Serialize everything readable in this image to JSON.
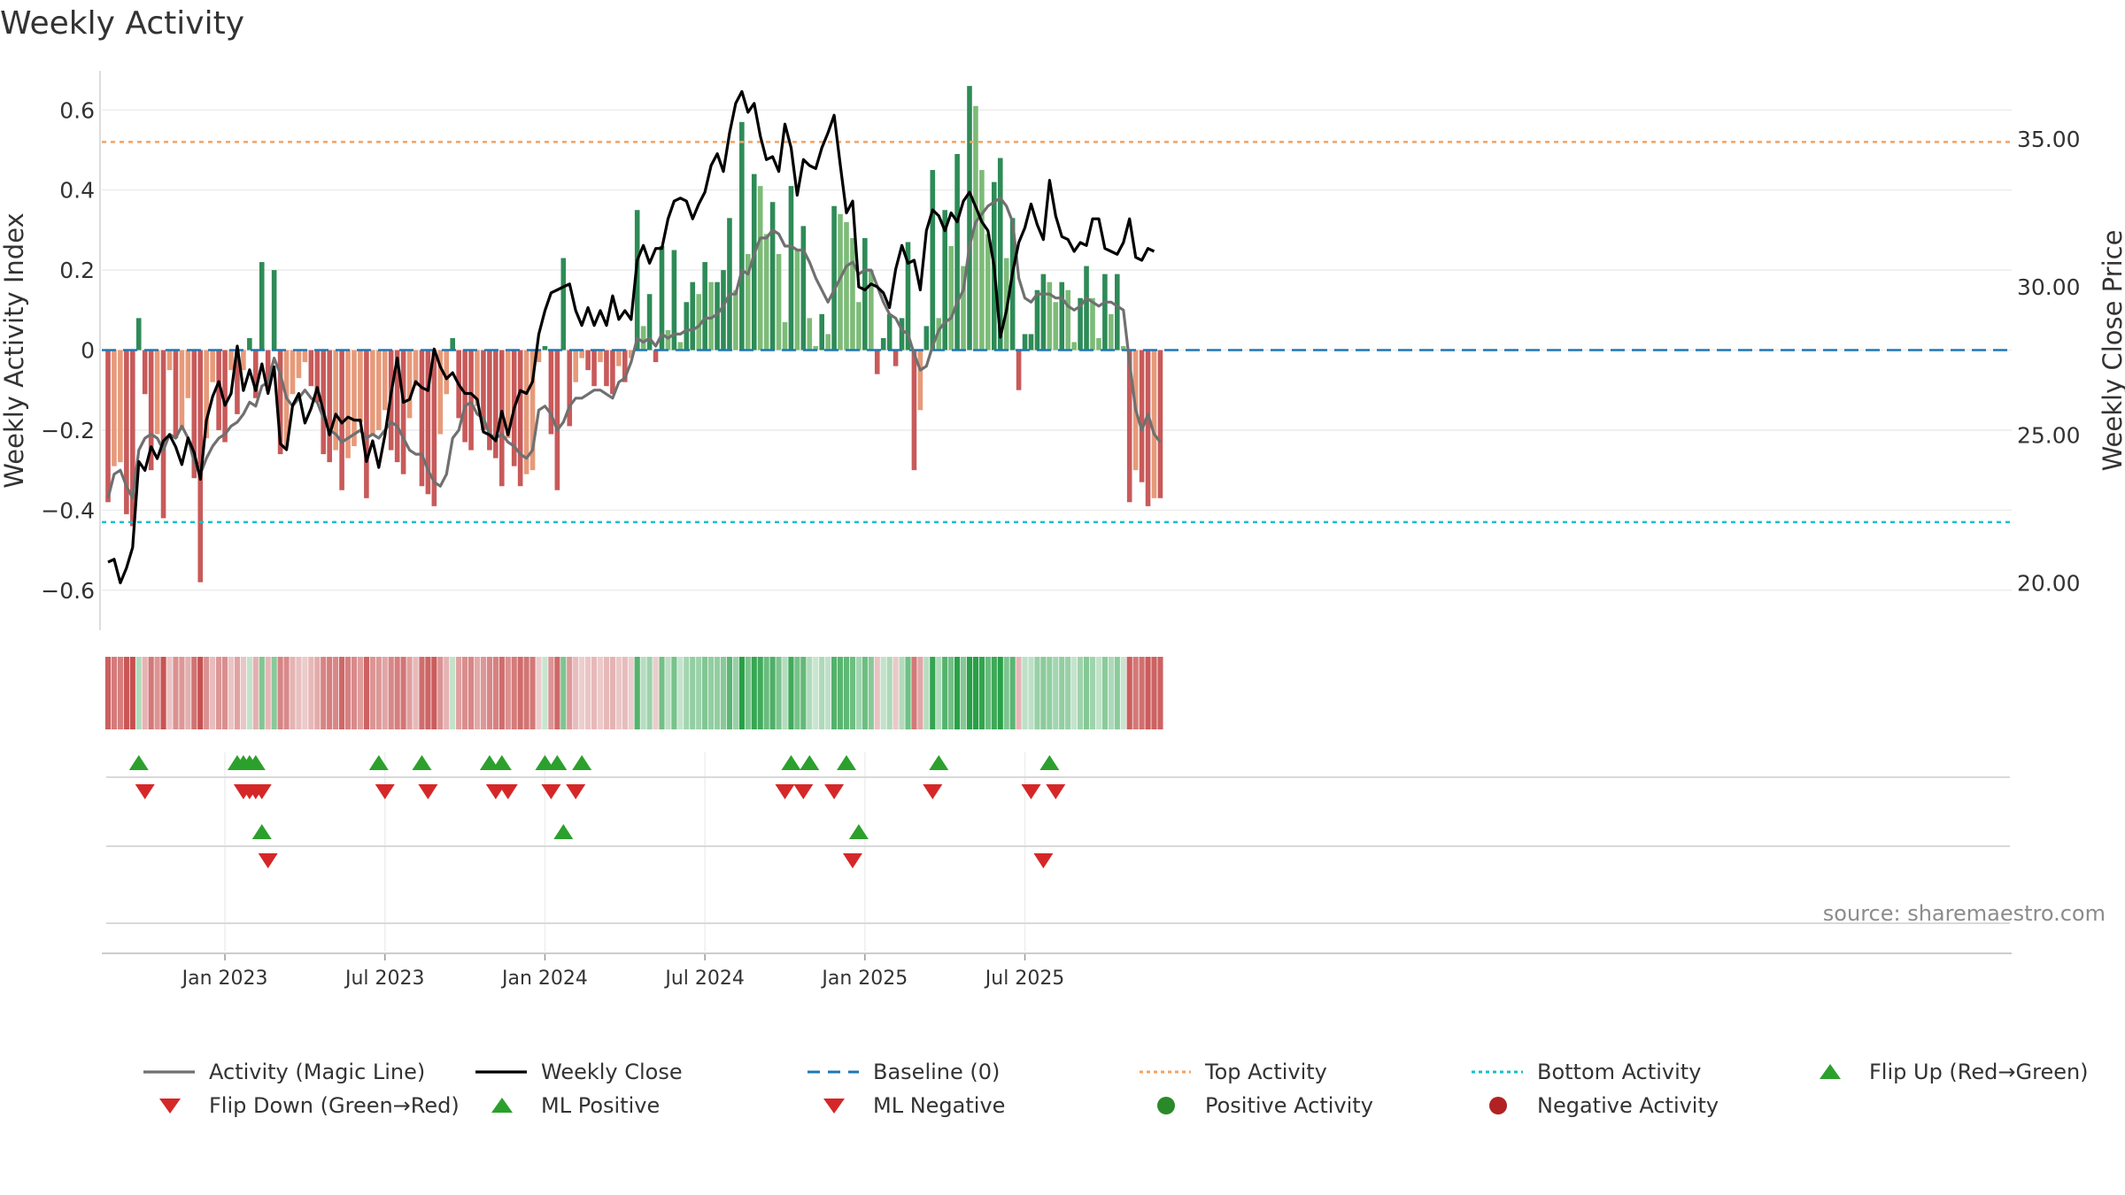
{
  "chart_data": {
    "type": "bar",
    "title": "Weekly Activity",
    "ylabel_left": "Weekly Activity Index",
    "ylabel_right": "Weekly Close Price",
    "ylim_left": [
      -0.7,
      0.72
    ],
    "ylim_right": [
      18.4,
      37.6
    ],
    "yticks_left": [
      {
        "value": 0.6,
        "label": "0.6"
      },
      {
        "value": 0.4,
        "label": "0.4"
      },
      {
        "value": 0.2,
        "label": "0.2"
      },
      {
        "value": 0,
        "label": "0"
      },
      {
        "value": -0.2,
        "label": "−0.2"
      },
      {
        "value": -0.4,
        "label": "−0.4"
      },
      {
        "value": -0.6,
        "label": "−0.6"
      }
    ],
    "yticks_right": [
      {
        "value": 35,
        "label": "35.00"
      },
      {
        "value": 30,
        "label": "30.00"
      },
      {
        "value": 25,
        "label": "25.00"
      },
      {
        "value": 20,
        "label": "20.00"
      }
    ],
    "xticks": [
      {
        "week": 19,
        "label": "Jan 2023"
      },
      {
        "week": 45,
        "label": "Jul 2023"
      },
      {
        "week": 71,
        "label": "Jan 2024"
      },
      {
        "week": 97,
        "label": "Jul 2024"
      },
      {
        "week": 123,
        "label": "Jan 2025"
      },
      {
        "week": 149,
        "label": "Jul 2025"
      }
    ],
    "top_activity": 0.52,
    "bottom_activity": -0.43,
    "baseline": 0,
    "activity": [
      -0.38,
      -0.29,
      -0.28,
      -0.41,
      -0.44,
      0.08,
      -0.11,
      -0.3,
      -0.21,
      -0.42,
      -0.05,
      -0.22,
      -0.2,
      -0.12,
      -0.32,
      -0.58,
      -0.22,
      -0.08,
      -0.2,
      -0.23,
      -0.05,
      -0.16,
      -0.05,
      0.03,
      -0.12,
      0.22,
      -0.1,
      0.2,
      -0.26,
      -0.24,
      -0.11,
      -0.07,
      -0.03,
      -0.09,
      -0.13,
      -0.26,
      -0.28,
      -0.25,
      -0.35,
      -0.27,
      -0.24,
      -0.18,
      -0.37,
      -0.21,
      -0.2,
      -0.15,
      -0.25,
      -0.28,
      -0.31,
      -0.17,
      -0.09,
      -0.34,
      -0.36,
      -0.39,
      -0.21,
      -0.11,
      0.03,
      -0.17,
      -0.23,
      -0.25,
      -0.14,
      -0.2,
      -0.25,
      -0.27,
      -0.34,
      -0.22,
      -0.29,
      -0.34,
      -0.31,
      -0.3,
      -0.03,
      0.01,
      -0.21,
      -0.35,
      0.23,
      -0.19,
      -0.08,
      -0.02,
      -0.05,
      -0.09,
      -0.03,
      -0.09,
      -0.11,
      -0.04,
      -0.08,
      -0.02,
      0.35,
      0.06,
      0.14,
      -0.03,
      0.26,
      0.05,
      0.25,
      0.02,
      0.12,
      0.17,
      0.14,
      0.22,
      0.17,
      0.17,
      0.2,
      0.33,
      0.15,
      0.57,
      0.24,
      0.44,
      0.41,
      0.29,
      0.37,
      0.24,
      0.07,
      0.41,
      0.25,
      0.31,
      0.08,
      0.01,
      0.09,
      0.04,
      0.36,
      0.34,
      0.32,
      0.28,
      0.12,
      0.28,
      0.2,
      -0.06,
      0.03,
      0.09,
      -0.04,
      0.08,
      0.27,
      -0.3,
      -0.15,
      0.06,
      0.45,
      0.08,
      0.35,
      0.26,
      0.49,
      0.21,
      0.66,
      0.61,
      0.45,
      0.29,
      0.42,
      0.48,
      0.23,
      0.33,
      -0.1,
      0.04,
      0.04,
      0.15,
      0.19,
      0.17,
      0.12,
      0.17,
      0.15,
      0.02,
      0.13,
      0.21,
      0.13,
      0.03,
      0.19,
      0.09,
      0.19,
      0.01,
      -0.38,
      -0.3,
      -0.33,
      -0.39,
      -0.37,
      -0.37
    ],
    "magic_line": [
      -0.37,
      -0.31,
      -0.3,
      -0.34,
      -0.37,
      -0.25,
      -0.22,
      -0.21,
      -0.22,
      -0.25,
      -0.21,
      -0.22,
      -0.19,
      -0.22,
      -0.28,
      -0.31,
      -0.27,
      -0.24,
      -0.22,
      -0.21,
      -0.19,
      -0.18,
      -0.16,
      -0.13,
      -0.14,
      -0.09,
      -0.08,
      -0.02,
      -0.06,
      -0.12,
      -0.14,
      -0.12,
      -0.1,
      -0.12,
      -0.13,
      -0.17,
      -0.2,
      -0.21,
      -0.23,
      -0.22,
      -0.21,
      -0.2,
      -0.22,
      -0.21,
      -0.22,
      -0.2,
      -0.18,
      -0.19,
      -0.22,
      -0.25,
      -0.26,
      -0.26,
      -0.3,
      -0.33,
      -0.34,
      -0.31,
      -0.22,
      -0.2,
      -0.14,
      -0.13,
      -0.16,
      -0.17,
      -0.21,
      -0.22,
      -0.21,
      -0.23,
      -0.24,
      -0.26,
      -0.27,
      -0.25,
      -0.15,
      -0.14,
      -0.16,
      -0.2,
      -0.18,
      -0.14,
      -0.12,
      -0.12,
      -0.11,
      -0.1,
      -0.1,
      -0.11,
      -0.12,
      -0.08,
      -0.07,
      -0.03,
      0.03,
      0.02,
      0.03,
      0.01,
      0.04,
      0.03,
      0.04,
      0.04,
      0.05,
      0.05,
      0.06,
      0.08,
      0.08,
      0.09,
      0.11,
      0.14,
      0.14,
      0.2,
      0.19,
      0.24,
      0.28,
      0.28,
      0.3,
      0.29,
      0.26,
      0.26,
      0.25,
      0.25,
      0.22,
      0.18,
      0.15,
      0.12,
      0.15,
      0.18,
      0.21,
      0.22,
      0.19,
      0.2,
      0.2,
      0.16,
      0.12,
      0.09,
      0.08,
      0.05,
      0.04,
      -0.01,
      -0.05,
      -0.04,
      0.01,
      0.05,
      0.07,
      0.08,
      0.12,
      0.15,
      0.26,
      0.32,
      0.34,
      0.36,
      0.37,
      0.38,
      0.36,
      0.32,
      0.18,
      0.13,
      0.12,
      0.14,
      0.14,
      0.14,
      0.13,
      0.13,
      0.11,
      0.1,
      0.11,
      0.13,
      0.12,
      0.11,
      0.12,
      0.12,
      0.11,
      0.1,
      -0.03,
      -0.15,
      -0.2,
      -0.16,
      -0.21,
      -0.23
    ],
    "weekly_close": [
      20.7,
      20.8,
      20.0,
      20.5,
      21.2,
      24.1,
      23.8,
      24.6,
      24.2,
      24.8,
      25.0,
      24.6,
      24.0,
      24.9,
      24.4,
      23.5,
      25.5,
      26.3,
      26.8,
      26.0,
      26.4,
      28.0,
      26.5,
      27.2,
      26.5,
      27.4,
      26.4,
      27.3,
      24.7,
      24.5,
      26.0,
      26.4,
      25.4,
      25.9,
      26.6,
      25.8,
      25.0,
      25.7,
      25.4,
      25.6,
      25.5,
      25.5,
      24.1,
      24.8,
      23.9,
      25.0,
      26.4,
      27.6,
      26.1,
      26.2,
      26.8,
      26.6,
      26.5,
      27.9,
      27.3,
      26.9,
      27.1,
      26.7,
      26.4,
      26.4,
      26.2,
      25.1,
      25.0,
      24.8,
      25.8,
      25.0,
      25.9,
      26.5,
      26.4,
      26.8,
      28.4,
      29.2,
      29.8,
      29.9,
      30.0,
      30.1,
      29.2,
      28.7,
      29.3,
      28.7,
      29.2,
      28.7,
      29.7,
      28.9,
      29.2,
      28.9,
      30.9,
      31.4,
      30.8,
      31.3,
      31.3,
      32.3,
      32.9,
      33.0,
      32.9,
      32.3,
      32.8,
      33.2,
      34.1,
      34.5,
      33.9,
      35.2,
      36.2,
      36.6,
      35.9,
      36.2,
      35.1,
      34.3,
      34.4,
      33.9,
      35.5,
      34.7,
      33.1,
      34.3,
      34.1,
      34.0,
      34.7,
      35.2,
      35.8,
      34.1,
      32.5,
      32.9,
      30.0,
      29.9,
      30.1,
      30.0,
      29.8,
      29.3,
      30.6,
      31.4,
      30.8,
      30.9,
      29.9,
      31.9,
      32.6,
      32.4,
      31.9,
      32.5,
      32.2,
      32.9,
      33.2,
      32.7,
      32.2,
      31.9,
      30.7,
      28.3,
      29.2,
      30.5,
      31.5,
      32.0,
      32.8,
      32.1,
      31.6,
      33.6,
      32.4,
      31.7,
      31.6,
      31.2,
      31.5,
      31.4,
      32.3,
      32.3,
      31.3,
      31.2,
      31.1,
      31.5,
      32.3,
      31.0,
      30.9,
      31.3,
      31.2
    ],
    "flips_up_row1": [
      5,
      21,
      22,
      23,
      24,
      44,
      51,
      62,
      64,
      71,
      73,
      77,
      111,
      114,
      120,
      135,
      153
    ],
    "flips_down_row1": [
      6,
      22,
      23,
      24,
      25,
      45,
      52,
      63,
      65,
      72,
      76,
      110,
      113,
      118,
      134,
      150,
      154
    ],
    "flips_up_row2": [
      25,
      74,
      122
    ],
    "flips_down_row2": [
      26,
      121,
      152
    ],
    "source": "source: sharemaestro.com",
    "legend": [
      {
        "label": "Activity (Magic Line)",
        "symbol": "line",
        "color": "#707070"
      },
      {
        "label": "Weekly Close",
        "symbol": "line",
        "color": "#000000"
      },
      {
        "label": "Baseline (0)",
        "symbol": "dashed",
        "color": "#1f77b4"
      },
      {
        "label": "Top Activity",
        "symbol": "dotted",
        "color": "#f4a261"
      },
      {
        "label": "Bottom Activity",
        "symbol": "dotted",
        "color": "#17becf"
      },
      {
        "label": "Flip Up (Red→Green)",
        "symbol": "triangle-up",
        "color": "#2ca02c"
      },
      {
        "label": "Flip Down (Green→Red)",
        "symbol": "triangle-down",
        "color": "#d62728"
      },
      {
        "label": "ML Positive",
        "symbol": "triangle-up",
        "color": "#2ca02c"
      },
      {
        "label": "ML Negative",
        "symbol": "triangle-down",
        "color": "#d62728"
      },
      {
        "label": "Positive Activity",
        "symbol": "circle",
        "color": "#2a8a2a"
      },
      {
        "label": "Negative Activity",
        "symbol": "circle",
        "color": "#b22222"
      }
    ]
  }
}
